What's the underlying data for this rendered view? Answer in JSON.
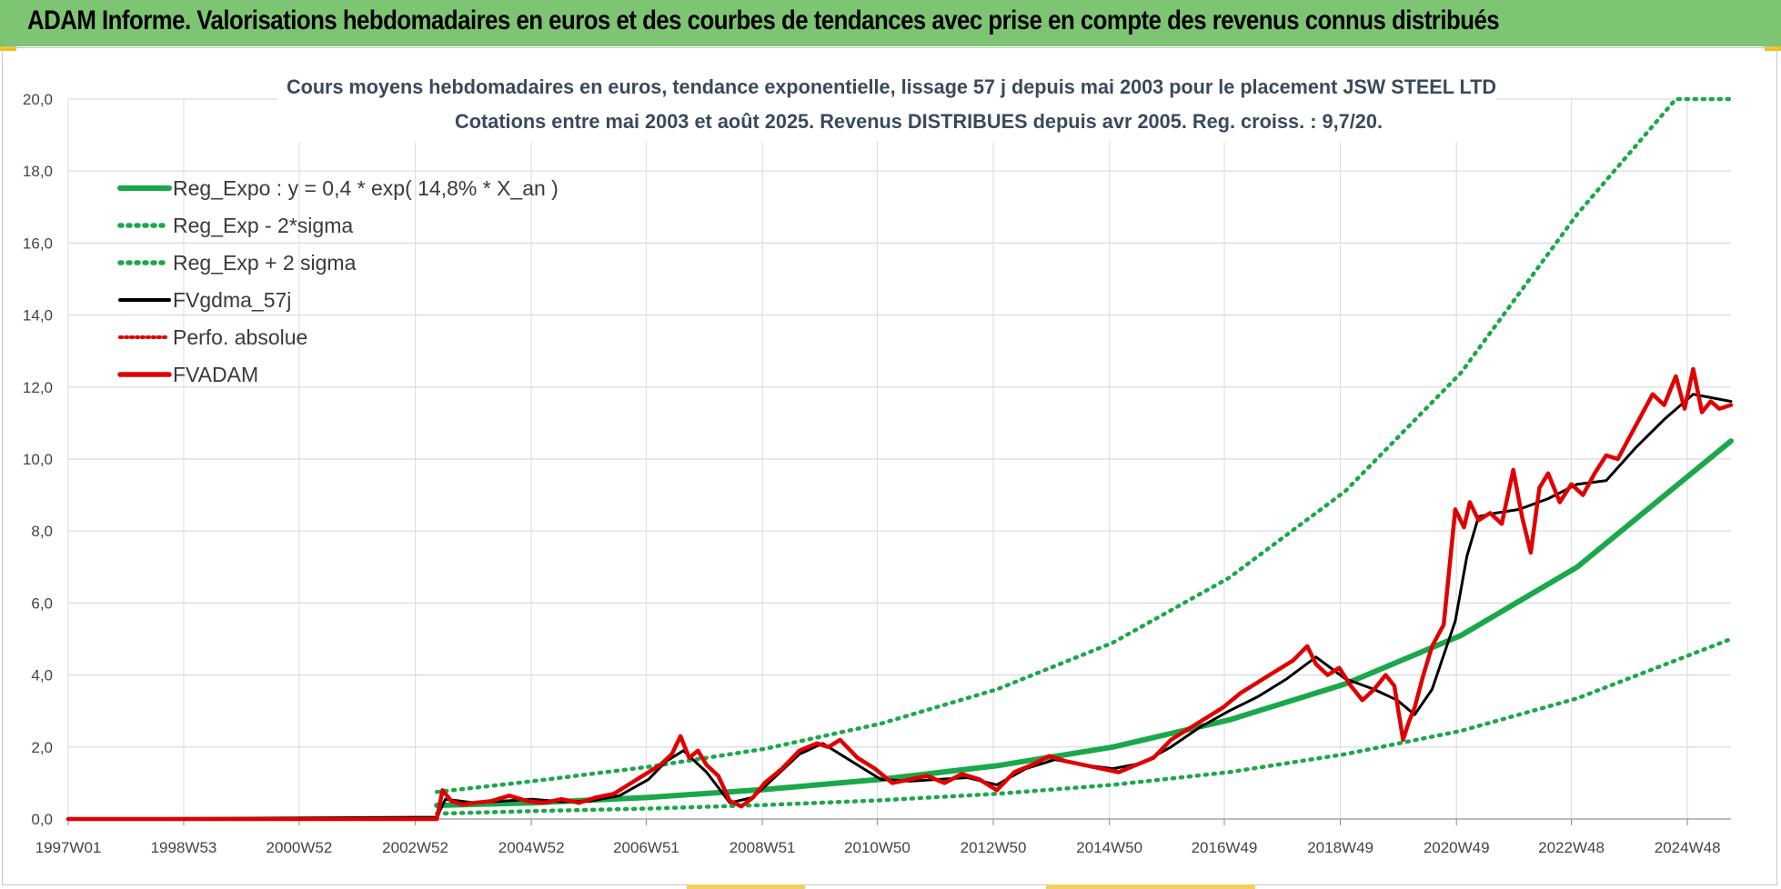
{
  "header": {
    "title": "ADAM Informe. Valorisations hebdomadaires en euros et des courbes de tendances avec prise en compte des revenus connus distribués"
  },
  "chart_data": {
    "type": "line",
    "title": "Cours moyens hebdomadaires en euros, tendance exponentielle, lissage 57 j depuis mai 2003 pour le placement JSW STEEL LTD",
    "subtitle": "Cotations entre mai 2003 et août 2025. Revenus DISTRIBUES depuis avr 2005. Reg. croiss. : 9,7/20.",
    "xlabel": "",
    "ylabel": "",
    "ylim": [
      0,
      20
    ],
    "xlim": [
      1997.0,
      2025.65
    ],
    "y_ticks": [
      "0,0",
      "2,0",
      "4,0",
      "6,0",
      "8,0",
      "10,0",
      "12,0",
      "14,0",
      "16,0",
      "18,0",
      "20,0"
    ],
    "x_ticks": [
      {
        "label": "1997W01",
        "x": 1997.0
      },
      {
        "label": "1998W53",
        "x": 1998.99
      },
      {
        "label": "2000W52",
        "x": 2000.98
      },
      {
        "label": "2002W52",
        "x": 2002.98
      },
      {
        "label": "2004W52",
        "x": 2004.98
      },
      {
        "label": "2006W51",
        "x": 2006.96
      },
      {
        "label": "2008W51",
        "x": 2008.96
      },
      {
        "label": "2010W50",
        "x": 2010.94
      },
      {
        "label": "2012W50",
        "x": 2012.94
      },
      {
        "label": "2014W50",
        "x": 2014.94
      },
      {
        "label": "2016W49",
        "x": 2016.92
      },
      {
        "label": "2018W49",
        "x": 2018.92
      },
      {
        "label": "2020W49",
        "x": 2020.92
      },
      {
        "label": "2022W48",
        "x": 2022.9
      },
      {
        "label": "2024W48",
        "x": 2024.9
      }
    ],
    "grid": true,
    "legend_position": "top-left",
    "colors": {
      "trend": "#1aa84a",
      "band": "#1aa84a",
      "gdma": "#000000",
      "perfo": "#e00000",
      "adam": "#e00000"
    },
    "series": [
      {
        "name": "Reg_Expo : y = 0,4 * exp( 14,8% *  X_an )",
        "style": "solid-thick-green",
        "x": [
          2003.35,
          2005,
          2007,
          2009,
          2011,
          2013,
          2015,
          2017,
          2019,
          2021,
          2023,
          2025.65
        ],
        "values": [
          0.38,
          0.45,
          0.6,
          0.82,
          1.1,
          1.48,
          2.0,
          2.75,
          3.75,
          5.1,
          7.0,
          10.5
        ]
      },
      {
        "name": "Reg_Exp - 2*sigma",
        "style": "dotted-green",
        "x": [
          2003.35,
          2005,
          2007,
          2009,
          2011,
          2013,
          2015,
          2017,
          2019,
          2021,
          2023,
          2025.65
        ],
        "values": [
          0.15,
          0.22,
          0.29,
          0.39,
          0.52,
          0.7,
          0.95,
          1.3,
          1.8,
          2.45,
          3.35,
          5.0
        ]
      },
      {
        "name": "Reg_Exp + 2 sigma",
        "style": "dotted-green",
        "x": [
          2003.35,
          2005,
          2007,
          2009,
          2011,
          2013,
          2015,
          2017,
          2019,
          2021,
          2023,
          2024.7,
          2025.65
        ],
        "values": [
          0.75,
          1.05,
          1.45,
          1.95,
          2.65,
          3.6,
          4.9,
          6.7,
          9.1,
          12.4,
          16.8,
          20.0,
          20.0
        ]
      },
      {
        "name": "FVgdma_57j",
        "style": "solid-black",
        "x": [
          1997.0,
          2003.35,
          2003.5,
          2004.0,
          2004.5,
          2005.0,
          2005.5,
          2006.0,
          2006.5,
          2007.0,
          2007.3,
          2007.6,
          2008.0,
          2008.4,
          2008.8,
          2009.2,
          2009.6,
          2010.0,
          2010.5,
          2011.0,
          2011.5,
          2012.0,
          2012.5,
          2013.0,
          2013.5,
          2014.0,
          2014.5,
          2015.0,
          2015.5,
          2016.0,
          2016.5,
          2017.0,
          2017.5,
          2018.0,
          2018.5,
          2019.0,
          2019.5,
          2019.9,
          2020.2,
          2020.5,
          2020.9,
          2021.1,
          2021.3,
          2021.6,
          2022.0,
          2022.5,
          2023.0,
          2023.5,
          2024.0,
          2024.5,
          2025.0,
          2025.65
        ],
        "values": [
          0.0,
          0.05,
          0.55,
          0.45,
          0.5,
          0.55,
          0.48,
          0.5,
          0.65,
          1.1,
          1.6,
          1.9,
          1.3,
          0.45,
          0.6,
          1.2,
          1.8,
          2.1,
          1.6,
          1.1,
          1.05,
          1.1,
          1.15,
          0.95,
          1.4,
          1.65,
          1.5,
          1.4,
          1.55,
          2.0,
          2.55,
          3.0,
          3.4,
          3.9,
          4.5,
          3.9,
          3.6,
          3.3,
          2.9,
          3.6,
          5.5,
          7.3,
          8.4,
          8.5,
          8.6,
          8.9,
          9.3,
          9.4,
          10.3,
          11.1,
          11.8,
          11.6
        ]
      },
      {
        "name": "Perfo. absolue",
        "style": "dotted-red",
        "x": [],
        "values": []
      },
      {
        "name": "FVADAM",
        "style": "solid-thick-red",
        "x": [
          1997.0,
          2003.35,
          2003.45,
          2003.6,
          2003.8,
          2004.0,
          2004.3,
          2004.6,
          2004.9,
          2005.2,
          2005.5,
          2005.8,
          2006.1,
          2006.4,
          2006.7,
          2007.0,
          2007.2,
          2007.4,
          2007.55,
          2007.7,
          2007.85,
          2008.0,
          2008.2,
          2008.4,
          2008.6,
          2008.8,
          2009.0,
          2009.3,
          2009.6,
          2009.9,
          2010.1,
          2010.3,
          2010.6,
          2010.9,
          2011.2,
          2011.5,
          2011.8,
          2012.1,
          2012.4,
          2012.7,
          2013.0,
          2013.3,
          2013.6,
          2013.9,
          2014.2,
          2014.5,
          2014.8,
          2015.1,
          2015.4,
          2015.7,
          2016.0,
          2016.3,
          2016.6,
          2016.9,
          2017.2,
          2017.5,
          2017.8,
          2018.1,
          2018.35,
          2018.5,
          2018.7,
          2018.9,
          2019.1,
          2019.3,
          2019.5,
          2019.7,
          2019.85,
          2020.0,
          2020.1,
          2020.2,
          2020.35,
          2020.5,
          2020.7,
          2020.9,
          2021.05,
          2021.15,
          2021.3,
          2021.5,
          2021.7,
          2021.9,
          2022.05,
          2022.2,
          2022.35,
          2022.5,
          2022.7,
          2022.9,
          2023.1,
          2023.3,
          2023.5,
          2023.7,
          2023.9,
          2024.1,
          2024.3,
          2024.5,
          2024.7,
          2024.85,
          2025.0,
          2025.15,
          2025.3,
          2025.45,
          2025.65
        ],
        "values": [
          0.0,
          0.0,
          0.8,
          0.5,
          0.4,
          0.45,
          0.5,
          0.65,
          0.5,
          0.45,
          0.55,
          0.45,
          0.6,
          0.7,
          1.0,
          1.3,
          1.5,
          1.8,
          2.3,
          1.7,
          1.9,
          1.5,
          1.2,
          0.5,
          0.35,
          0.6,
          1.0,
          1.4,
          1.9,
          2.1,
          2.0,
          2.2,
          1.7,
          1.4,
          1.0,
          1.1,
          1.2,
          1.0,
          1.25,
          1.1,
          0.8,
          1.3,
          1.5,
          1.75,
          1.6,
          1.5,
          1.4,
          1.3,
          1.5,
          1.7,
          2.2,
          2.5,
          2.8,
          3.1,
          3.5,
          3.8,
          4.1,
          4.4,
          4.8,
          4.3,
          4.0,
          4.2,
          3.7,
          3.3,
          3.6,
          4.0,
          3.7,
          2.2,
          2.7,
          3.1,
          4.0,
          4.8,
          5.4,
          8.6,
          8.1,
          8.8,
          8.3,
          8.5,
          8.2,
          9.7,
          8.4,
          7.4,
          9.2,
          9.6,
          8.8,
          9.3,
          9.0,
          9.6,
          10.1,
          10.0,
          10.6,
          11.2,
          11.8,
          11.5,
          12.3,
          11.4,
          12.5,
          11.3,
          11.6,
          11.4,
          11.5
        ]
      }
    ]
  }
}
